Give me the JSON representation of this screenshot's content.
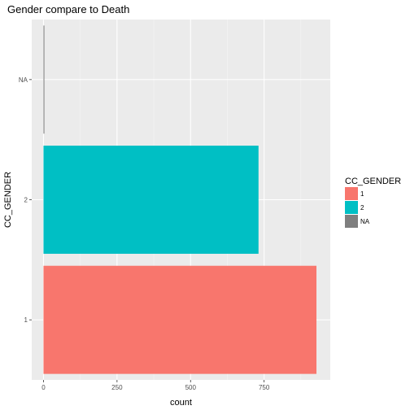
{
  "chart_data": {
    "type": "bar",
    "orientation": "horizontal",
    "title": "Gender compare to Death",
    "xlabel": "count",
    "ylabel": "CC_GENDER",
    "categories": [
      "1",
      "2",
      "NA"
    ],
    "values": [
      928,
      731,
      3
    ],
    "colors": [
      "#F8766D",
      "#00BFC4",
      "#7F7F7F"
    ],
    "xlim": [
      -40,
      975
    ],
    "xticks": [
      0,
      250,
      500,
      750
    ],
    "grid": true,
    "background": "#EBEBEB",
    "legend": {
      "title": "CC_GENDER",
      "placement": "right",
      "entries": [
        {
          "label": "1",
          "color": "#F8766D"
        },
        {
          "label": "2",
          "color": "#00BFC4"
        },
        {
          "label": "NA",
          "color": "#7F7F7F"
        }
      ]
    }
  }
}
